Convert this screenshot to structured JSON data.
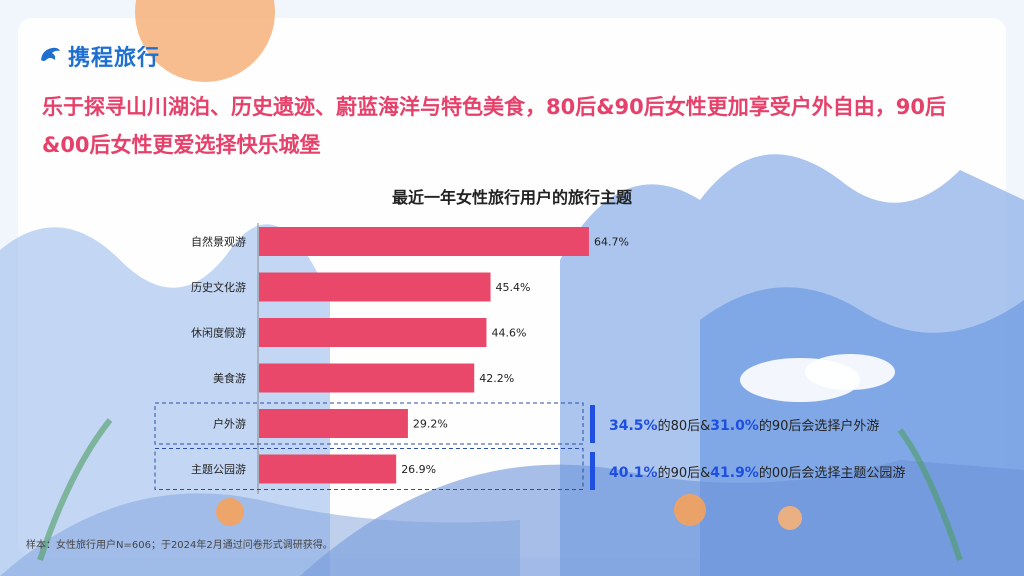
{
  "brand": {
    "name": "携程旅行"
  },
  "headline": "乐于探寻山川湖泊、历史遗迹、蔚蓝海洋与特色美食，80后&90后女性更加享受户外自由，90后&00后女性更爱选择快乐城堡",
  "chart_data": {
    "type": "bar",
    "orientation": "horizontal",
    "title": "最近一年女性旅行用户的旅行主题",
    "categories": [
      "自然景观游",
      "历史文化游",
      "休闲度假游",
      "美食游",
      "户外游",
      "主题公园游"
    ],
    "values": [
      64.7,
      45.4,
      44.6,
      42.2,
      29.2,
      26.9
    ],
    "value_labels": [
      "64.7%",
      "45.4%",
      "44.6%",
      "42.2%",
      "29.2%",
      "26.9%"
    ],
    "unit": "%",
    "xlim": [
      0,
      100
    ],
    "bar_color": "#e9486a",
    "highlighted_categories": [
      "户外游",
      "主题公园游"
    ]
  },
  "notes": [
    {
      "pct1": "34.5%",
      "text1": "的80后&",
      "pct2": "31.0%",
      "text2": "的90后会选择户外游"
    },
    {
      "pct1": "40.1%",
      "text1": "的90后&",
      "pct2": "41.9%",
      "text2": "的00后会选择主题公园游"
    }
  ],
  "footnote": "样本：女性旅行用户N=606；于2024年2月通过问卷形式调研获得。",
  "colors": {
    "accent_red": "#e6416a",
    "brand_blue": "#1f6fd1",
    "note_blue": "#1e4fe0"
  }
}
